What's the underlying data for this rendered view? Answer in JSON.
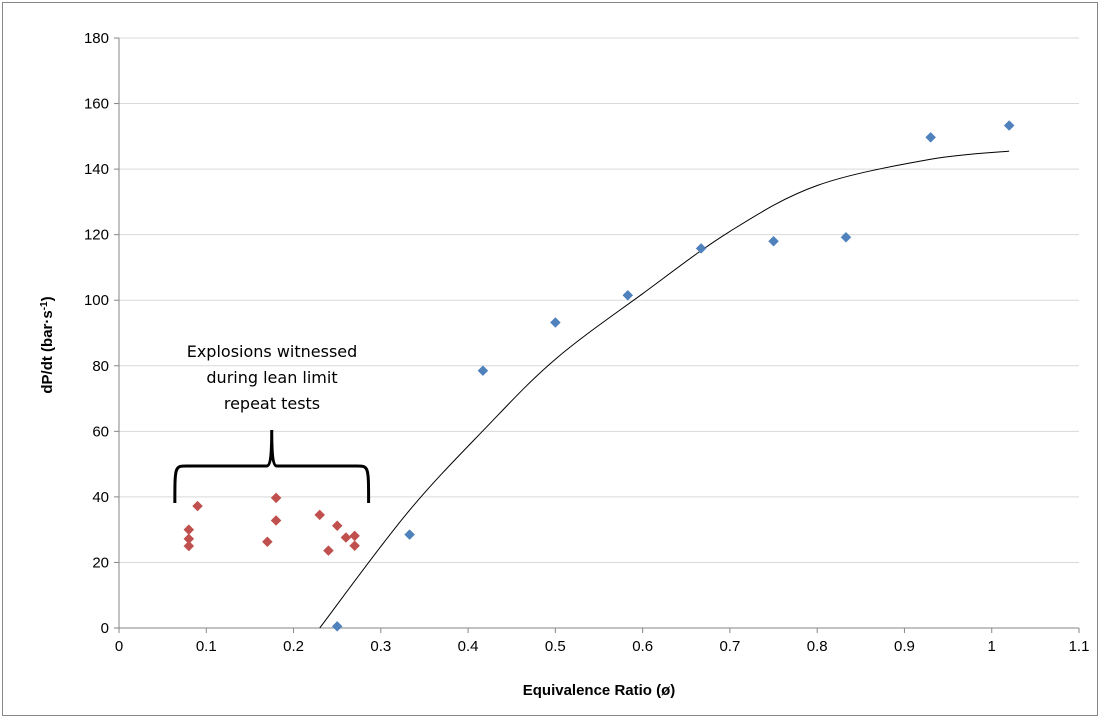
{
  "chart_data": {
    "type": "scatter",
    "title": "",
    "xlabel": "Equivalence Ratio (ø)",
    "ylabel_main": "dP/dt (bar·s",
    "ylabel_sup": "-1",
    "ylabel_close": ")",
    "xlim": [
      0,
      1.1
    ],
    "ylim": [
      0,
      180
    ],
    "x_ticks": [
      0,
      0.1,
      0.2,
      0.3,
      0.4,
      0.5,
      0.6,
      0.7,
      0.8,
      0.9,
      1,
      1.1
    ],
    "x_tick_labels": [
      "0",
      "0.1",
      "0.2",
      "0.3",
      "0.4",
      "0.5",
      "0.6",
      "0.7",
      "0.8",
      "0.9",
      "1",
      "1.1"
    ],
    "y_ticks": [
      0,
      20,
      40,
      60,
      80,
      100,
      120,
      140,
      160,
      180
    ],
    "y_tick_labels": [
      "0",
      "20",
      "40",
      "60",
      "80",
      "100",
      "120",
      "140",
      "160",
      "180"
    ],
    "grid": "horizontal",
    "series": [
      {
        "color": "#4F81BD",
        "marker": "diamond",
        "points": [
          [
            0.25,
            0.5
          ],
          [
            0.333,
            28.5
          ],
          [
            0.417,
            78.5
          ],
          [
            0.5,
            93.2
          ],
          [
            0.583,
            101.5
          ],
          [
            0.667,
            115.8
          ],
          [
            0.75,
            118
          ],
          [
            0.833,
            119.2
          ],
          [
            0.93,
            149.7
          ],
          [
            1.02,
            153.3
          ]
        ]
      },
      {
        "color": "#C0504D",
        "marker": "diamond",
        "points": [
          [
            0.08,
            30
          ],
          [
            0.08,
            27.2
          ],
          [
            0.08,
            25
          ],
          [
            0.09,
            37.2
          ],
          [
            0.17,
            26.3
          ],
          [
            0.18,
            39.7
          ],
          [
            0.18,
            32.8
          ],
          [
            0.23,
            34.5
          ],
          [
            0.24,
            23.6
          ],
          [
            0.25,
            31.2
          ],
          [
            0.26,
            27.6
          ],
          [
            0.27,
            28.1
          ],
          [
            0.27,
            25.1
          ]
        ]
      }
    ],
    "trendline": {
      "type": "polynomial",
      "color": "#000000",
      "x_range": [
        0.23,
        1.02
      ],
      "points": [
        [
          0.23,
          0
        ],
        [
          0.33,
          35
        ],
        [
          0.42,
          61
        ],
        [
          0.5,
          82
        ],
        [
          0.6,
          102
        ],
        [
          0.7,
          121
        ],
        [
          0.8,
          135
        ],
        [
          0.93,
          143
        ],
        [
          1.02,
          145.5
        ]
      ]
    },
    "annotation": {
      "lines": [
        "Explosions witnessed",
        "during lean limit",
        "repeat tests"
      ]
    }
  }
}
